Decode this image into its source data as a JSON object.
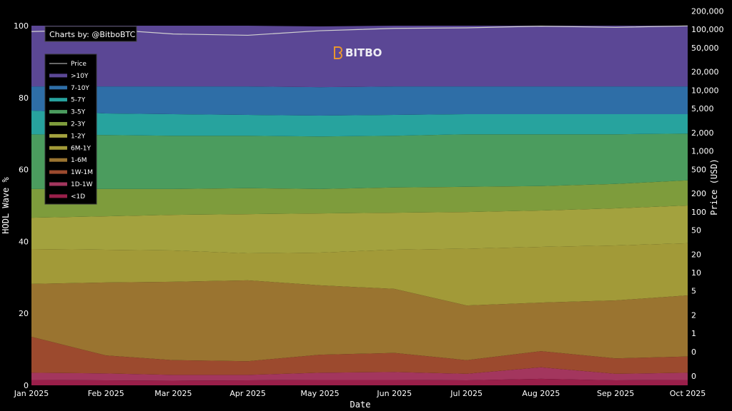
{
  "chart_data": {
    "type": "area",
    "stacked": true,
    "credit": "Charts by: @BitboBTC",
    "watermark": "BITBO",
    "xlabel": "Date",
    "ylabel": "HODL Wave %",
    "y2label": "Price (USD)",
    "ylim": [
      0,
      100
    ],
    "y2lim": [
      0.14,
      115000
    ],
    "y2scale": "log",
    "grid": false,
    "legend_position": "top-left",
    "x": [
      "2025-01-01",
      "2025-02-01",
      "2025-03-01",
      "2025-04-01",
      "2025-05-01",
      "2025-06-01",
      "2025-07-01",
      "2025-08-01",
      "2025-09-01",
      "2025-10-01"
    ],
    "x_ticks": [
      "Jan 2025",
      "Feb 2025",
      "Mar 2025",
      "Apr 2025",
      "May 2025",
      "Jun 2025",
      "Jul 2025",
      "Aug 2025",
      "Sep 2025",
      "Oct 2025"
    ],
    "y_ticks": [
      0,
      20,
      40,
      60,
      80,
      100
    ],
    "y2_ticks": [
      {
        "value": 200000,
        "label": "200,000"
      },
      {
        "value": 100000,
        "label": "100,000"
      },
      {
        "value": 50000,
        "label": "50,000"
      },
      {
        "value": 20000,
        "label": "20,000"
      },
      {
        "value": 10000,
        "label": "10,000"
      },
      {
        "value": 5000,
        "label": "5,000"
      },
      {
        "value": 2000,
        "label": "2,000"
      },
      {
        "value": 1000,
        "label": "1,000"
      },
      {
        "value": 500,
        "label": "500"
      },
      {
        "value": 200,
        "label": "200"
      },
      {
        "value": 100,
        "label": "100"
      },
      {
        "value": 50,
        "label": "50"
      },
      {
        "value": 20,
        "label": "20"
      },
      {
        "value": 10,
        "label": "10"
      },
      {
        "value": 5,
        "label": "5"
      },
      {
        "value": 2,
        "label": "2"
      },
      {
        "value": 1,
        "label": "1"
      },
      {
        "value": 0.5,
        "label": "0"
      },
      {
        "value": 0.2,
        "label": "0"
      }
    ],
    "price": {
      "name": "Price",
      "color": "#d0d0d0",
      "values": [
        92000,
        100000,
        84000,
        80000,
        95000,
        104000,
        106000,
        113000,
        108000,
        114000
      ]
    },
    "series": [
      {
        "name": "<1D",
        "color": "#9a1f4a",
        "values": [
          1.5,
          1.4,
          1.3,
          1.4,
          1.5,
          1.5,
          1.4,
          1.8,
          1.4,
          1.5
        ]
      },
      {
        "name": "1D-1W",
        "color": "#a3365e",
        "values": [
          2.0,
          1.9,
          1.6,
          1.5,
          2.0,
          2.2,
          1.8,
          3.2,
          1.8,
          2.0
        ]
      },
      {
        "name": "1W-1M",
        "color": "#9c4a2e",
        "values": [
          10.0,
          5.0,
          4.1,
          3.8,
          5.0,
          5.3,
          3.8,
          4.5,
          4.3,
          4.5
        ]
      },
      {
        "name": "1-6M",
        "color": "#9a7430",
        "values": [
          14.7,
          20.3,
          21.8,
          22.5,
          19.3,
          17.8,
          15.2,
          13.5,
          16.1,
          17.0
        ]
      },
      {
        "name": "6M-1Y",
        "color": "#a29a38",
        "values": [
          9.7,
          9.1,
          8.7,
          7.5,
          9.1,
          10.9,
          15.8,
          15.5,
          15.3,
          14.5
        ]
      },
      {
        "name": "1-2Y",
        "color": "#a3a23e",
        "values": [
          8.7,
          9.3,
          9.9,
          10.9,
          10.9,
          10.3,
          10.2,
          10.1,
          10.3,
          10.5
        ]
      },
      {
        "name": "2-3Y",
        "color": "#7e9c3c",
        "values": [
          8.0,
          7.6,
          7.2,
          7.2,
          6.8,
          7.0,
          7.0,
          6.8,
          6.8,
          7.0
        ]
      },
      {
        "name": "3-5Y",
        "color": "#4b9c5e",
        "values": [
          15.2,
          15.0,
          14.8,
          14.6,
          14.6,
          14.4,
          14.6,
          14.4,
          13.8,
          13.0
        ]
      },
      {
        "name": "5-7Y",
        "color": "#27a39e",
        "values": [
          6.6,
          6.0,
          6.0,
          5.8,
          5.8,
          5.8,
          5.6,
          5.6,
          5.6,
          5.4
        ]
      },
      {
        "name": "7-10Y",
        "color": "#2e6ea7",
        "values": [
          6.7,
          7.5,
          7.7,
          7.9,
          7.9,
          7.9,
          7.7,
          7.7,
          7.7,
          7.7
        ]
      },
      {
        "name": ">10Y",
        "color": "#5b4795",
        "values": [
          16.9,
          16.9,
          16.9,
          16.9,
          16.9,
          16.9,
          16.9,
          16.9,
          16.9,
          16.9
        ]
      }
    ]
  }
}
